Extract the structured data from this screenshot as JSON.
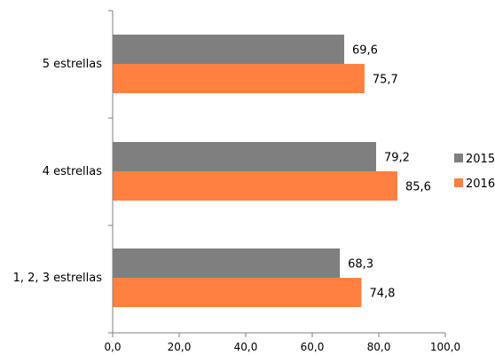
{
  "chart_data": {
    "type": "bar",
    "orientation": "horizontal",
    "categories": [
      "5 estrellas",
      "4 estrellas",
      "1, 2, 3 estrellas"
    ],
    "series": [
      {
        "name": "2015",
        "values": [
          69.6,
          79.2,
          68.3
        ],
        "labels": [
          "69,6",
          "79,2",
          "68,3"
        ],
        "color": "#7f7f7f"
      },
      {
        "name": "2016",
        "values": [
          75.7,
          85.6,
          74.8
        ],
        "labels": [
          "75,7",
          "85,6",
          "74,8"
        ],
        "color": "#ff8040"
      }
    ],
    "xlim": [
      0,
      100
    ],
    "xticks": [
      0,
      20,
      40,
      60,
      80,
      100
    ],
    "xtick_labels": [
      "0,0",
      "20,0",
      "40,0",
      "60,0",
      "80,0",
      "100,0"
    ],
    "grid": false,
    "legend_position": "right",
    "title": "",
    "xlabel": "",
    "ylabel": ""
  }
}
